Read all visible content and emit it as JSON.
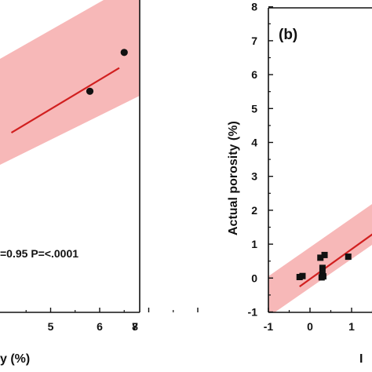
{
  "chart_data": [
    {
      "type": "scatter",
      "panel": "a",
      "xlabel_visible": "y (%)",
      "xlim": [
        4,
        8
      ],
      "x_ticks": [
        "5",
        "6",
        "7",
        "8"
      ],
      "annotation": "=0.95 P=<.0001",
      "points": [
        {
          "x": 5.8,
          "y": 5.9
        },
        {
          "x": 6.5,
          "y": 7.4
        }
      ],
      "fit_line": {
        "x": [
          4.2,
          6.4
        ],
        "y": [
          4.3,
          6.8
        ]
      },
      "band_color": "#f7b8b8",
      "line_color": "#d11f1f",
      "marker": "circle"
    },
    {
      "type": "scatter",
      "panel_label": "(b)",
      "ylabel": "Actual porosity  (%)",
      "xlabel_visible": "I",
      "xlim": [
        -1,
        2
      ],
      "ylim": [
        -1,
        8
      ],
      "x_ticks": [
        "-1",
        "0",
        "1"
      ],
      "y_ticks": [
        "-1",
        "0",
        "1",
        "2",
        "3",
        "4",
        "5",
        "6",
        "7",
        "8"
      ],
      "points": [
        {
          "x": -0.25,
          "y": 0.03
        },
        {
          "x": -0.18,
          "y": 0.06
        },
        {
          "x": 0.25,
          "y": 0.6
        },
        {
          "x": 0.3,
          "y": 0.12
        },
        {
          "x": 0.28,
          "y": 0.02
        },
        {
          "x": 0.32,
          "y": 0.05
        },
        {
          "x": 0.35,
          "y": 0.68
        },
        {
          "x": 0.3,
          "y": 0.3
        },
        {
          "x": 0.92,
          "y": 0.63
        }
      ],
      "fit_line": {
        "x": [
          -0.25,
          1.85
        ],
        "y": [
          -0.25,
          1.6
        ]
      },
      "band_color": "#f7b8b8",
      "line_color": "#d11f1f",
      "marker": "square"
    }
  ]
}
